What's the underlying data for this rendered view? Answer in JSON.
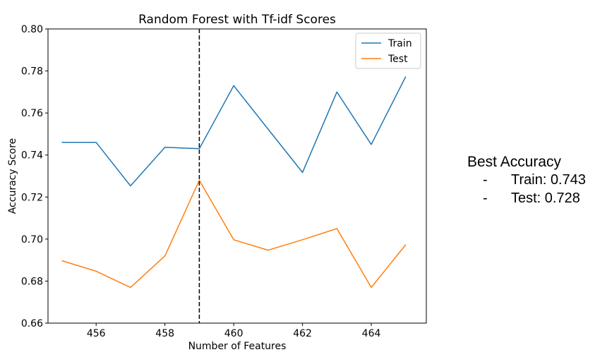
{
  "chart_data": {
    "type": "line",
    "title": "Random Forest with Tf-idf Scores",
    "xlabel": "Number of Features",
    "ylabel": "Accuracy Score",
    "xlim": [
      454.6,
      465.6
    ],
    "ylim": [
      0.66,
      0.8
    ],
    "xticks": [
      456,
      458,
      460,
      462,
      464
    ],
    "yticks": [
      0.66,
      0.68,
      0.7,
      0.72,
      0.74,
      0.76,
      0.78,
      0.8
    ],
    "x": [
      455,
      456,
      457,
      458,
      459,
      460,
      461,
      462,
      463,
      464,
      465
    ],
    "series": [
      {
        "name": "Train",
        "color": "#1f77b4",
        "values": [
          0.746,
          0.746,
          0.7253,
          0.7437,
          0.743,
          0.773,
          0.7523,
          0.7317,
          0.77,
          0.745,
          0.7773
        ]
      },
      {
        "name": "Test",
        "color": "#ff7f0e",
        "values": [
          0.6897,
          0.6847,
          0.677,
          0.692,
          0.728,
          0.6997,
          0.6947,
          0.6997,
          0.705,
          0.677,
          0.6973
        ]
      }
    ],
    "vline": {
      "x": 459,
      "style": "dashed",
      "color": "#000000"
    },
    "legend": "top-right",
    "grid": false
  },
  "annotation": {
    "title": "Best Accuracy",
    "items": [
      {
        "dash": "-",
        "text": "Train: 0.743"
      },
      {
        "dash": "-",
        "text": "Test: 0.728"
      }
    ]
  }
}
